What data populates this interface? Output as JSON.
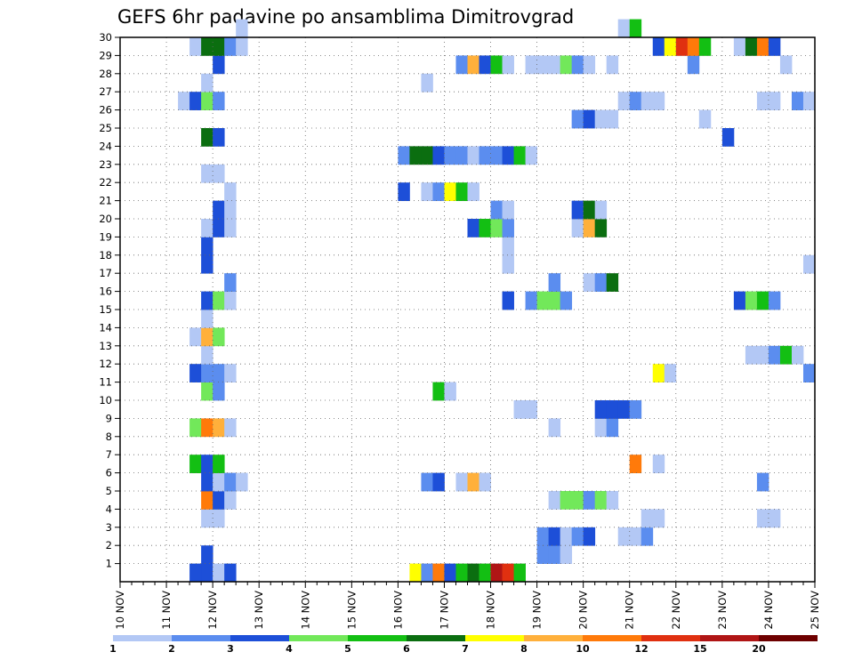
{
  "chart_data": {
    "type": "heatmap",
    "title": "GEFS 6hr padavine po ansamblima Dimitrovgrad",
    "xlabel": "",
    "ylabel": "",
    "x_tick_labels": [
      "10 NOV",
      "11 NOV",
      "12 NOV",
      "13 NOV",
      "14 NOV",
      "15 NOV",
      "16 NOV",
      "17 NOV",
      "18 NOV",
      "19 NOV",
      "20 NOV",
      "21 NOV",
      "22 NOV",
      "23 NOV",
      "24 NOV",
      "25 NOV"
    ],
    "y_tick_labels": [
      "1",
      "2",
      "3",
      "4",
      "5",
      "6",
      "7",
      "8",
      "9",
      "10",
      "11",
      "12",
      "13",
      "14",
      "15",
      "16",
      "17",
      "18",
      "19",
      "20",
      "21",
      "22",
      "23",
      "24",
      "25",
      "26",
      "27",
      "28",
      "29",
      "30"
    ],
    "x_range": [
      0,
      60
    ],
    "y_range": [
      0,
      30
    ],
    "grid": true,
    "cell_unit": "6-hour step index (0 = 10 NOV 00z); member index 1-30; category 1-12 = legend bin",
    "legend": {
      "placement": "bottom",
      "labels": [
        "1",
        "2",
        "3",
        "4",
        "5",
        "6",
        "7",
        "8",
        "10",
        "12",
        "15",
        "20"
      ],
      "colors": [
        "#b3c8f5",
        "#5b8def",
        "#1d4fd8",
        "#72e85a",
        "#13bf13",
        "#0b6e10",
        "#ffff00",
        "#ffb03b",
        "#ff7a0a",
        "#e03010",
        "#b01515",
        "#6e0000"
      ]
    },
    "cells": [
      [
        6,
        0,
        3
      ],
      [
        7,
        0,
        3
      ],
      [
        8,
        0,
        1
      ],
      [
        9,
        0,
        3
      ],
      [
        25,
        0,
        7
      ],
      [
        26,
        0,
        2
      ],
      [
        27,
        0,
        9
      ],
      [
        28,
        0,
        3
      ],
      [
        29,
        0,
        5
      ],
      [
        30,
        0,
        6
      ],
      [
        31,
        0,
        5
      ],
      [
        32,
        0,
        11
      ],
      [
        33,
        0,
        10
      ],
      [
        34,
        0,
        5
      ],
      [
        36,
        1,
        2
      ],
      [
        37,
        1,
        2
      ],
      [
        38,
        1,
        1
      ],
      [
        7,
        1,
        3
      ],
      [
        36,
        2,
        2
      ],
      [
        37,
        2,
        3
      ],
      [
        38,
        2,
        1
      ],
      [
        39,
        2,
        2
      ],
      [
        40,
        2,
        3
      ],
      [
        43,
        2,
        1
      ],
      [
        44,
        2,
        1
      ],
      [
        45,
        2,
        2
      ],
      [
        7,
        3,
        1
      ],
      [
        8,
        3,
        1
      ],
      [
        45,
        3,
        1
      ],
      [
        46,
        3,
        1
      ],
      [
        55,
        3,
        1
      ],
      [
        56,
        3,
        1
      ],
      [
        7,
        4,
        9
      ],
      [
        8,
        4,
        3
      ],
      [
        9,
        4,
        1
      ],
      [
        37,
        4,
        1
      ],
      [
        38,
        4,
        4
      ],
      [
        39,
        4,
        4
      ],
      [
        40,
        4,
        2
      ],
      [
        41,
        4,
        4
      ],
      [
        42,
        4,
        1
      ],
      [
        7,
        5,
        3
      ],
      [
        8,
        5,
        1
      ],
      [
        9,
        5,
        2
      ],
      [
        10,
        5,
        1
      ],
      [
        26,
        5,
        2
      ],
      [
        27,
        5,
        3
      ],
      [
        29,
        5,
        1
      ],
      [
        30,
        5,
        8
      ],
      [
        31,
        5,
        1
      ],
      [
        55,
        5,
        2
      ],
      [
        6,
        6,
        5
      ],
      [
        7,
        6,
        3
      ],
      [
        8,
        6,
        5
      ],
      [
        44,
        6,
        9
      ],
      [
        46,
        6,
        1
      ],
      [
        6,
        8,
        4
      ],
      [
        7,
        8,
        9
      ],
      [
        8,
        8,
        8
      ],
      [
        9,
        8,
        1
      ],
      [
        37,
        8,
        1
      ],
      [
        41,
        8,
        1
      ],
      [
        42,
        8,
        2
      ],
      [
        34,
        9,
        1
      ],
      [
        35,
        9,
        1
      ],
      [
        41,
        9,
        3
      ],
      [
        42,
        9,
        3
      ],
      [
        43,
        9,
        3
      ],
      [
        44,
        9,
        2
      ],
      [
        7,
        10,
        4
      ],
      [
        8,
        10,
        2
      ],
      [
        27,
        10,
        5
      ],
      [
        28,
        10,
        1
      ],
      [
        6,
        11,
        3
      ],
      [
        7,
        11,
        2
      ],
      [
        8,
        11,
        2
      ],
      [
        9,
        11,
        1
      ],
      [
        46,
        11,
        7
      ],
      [
        47,
        11,
        1
      ],
      [
        59,
        11,
        2
      ],
      [
        7,
        12,
        1
      ],
      [
        54,
        12,
        1
      ],
      [
        55,
        12,
        1
      ],
      [
        56,
        12,
        2
      ],
      [
        57,
        12,
        5
      ],
      [
        58,
        12,
        1
      ],
      [
        6,
        13,
        1
      ],
      [
        7,
        13,
        8
      ],
      [
        8,
        13,
        4
      ],
      [
        7,
        14,
        1
      ],
      [
        7,
        15,
        3
      ],
      [
        8,
        15,
        4
      ],
      [
        9,
        15,
        1
      ],
      [
        33,
        15,
        3
      ],
      [
        35,
        15,
        2
      ],
      [
        36,
        15,
        4
      ],
      [
        37,
        15,
        4
      ],
      [
        38,
        15,
        2
      ],
      [
        53,
        15,
        3
      ],
      [
        54,
        15,
        4
      ],
      [
        55,
        15,
        5
      ],
      [
        56,
        15,
        2
      ],
      [
        9,
        16,
        2
      ],
      [
        37,
        16,
        2
      ],
      [
        40,
        16,
        1
      ],
      [
        41,
        16,
        2
      ],
      [
        42,
        16,
        6
      ],
      [
        7,
        17,
        3
      ],
      [
        33,
        17,
        1
      ],
      [
        59,
        17,
        1
      ],
      [
        7,
        18,
        3
      ],
      [
        33,
        18,
        1
      ],
      [
        7,
        19,
        1
      ],
      [
        8,
        19,
        3
      ],
      [
        9,
        19,
        1
      ],
      [
        30,
        19,
        3
      ],
      [
        31,
        19,
        5
      ],
      [
        32,
        19,
        4
      ],
      [
        33,
        19,
        2
      ],
      [
        39,
        19,
        1
      ],
      [
        40,
        19,
        8
      ],
      [
        41,
        19,
        6
      ],
      [
        8,
        20,
        3
      ],
      [
        9,
        20,
        1
      ],
      [
        32,
        20,
        2
      ],
      [
        33,
        20,
        1
      ],
      [
        39,
        20,
        3
      ],
      [
        40,
        20,
        6
      ],
      [
        41,
        20,
        1
      ],
      [
        24,
        21,
        3
      ],
      [
        26,
        21,
        1
      ],
      [
        27,
        21,
        2
      ],
      [
        28,
        21,
        7
      ],
      [
        29,
        21,
        5
      ],
      [
        30,
        21,
        1
      ],
      [
        9,
        21,
        1
      ],
      [
        7,
        22,
        1
      ],
      [
        8,
        22,
        1
      ],
      [
        24,
        23,
        2
      ],
      [
        25,
        23,
        6
      ],
      [
        26,
        23,
        6
      ],
      [
        27,
        23,
        3
      ],
      [
        28,
        23,
        2
      ],
      [
        29,
        23,
        2
      ],
      [
        30,
        23,
        1
      ],
      [
        31,
        23,
        2
      ],
      [
        32,
        23,
        2
      ],
      [
        33,
        23,
        3
      ],
      [
        34,
        23,
        5
      ],
      [
        35,
        23,
        1
      ],
      [
        7,
        24,
        6
      ],
      [
        8,
        24,
        3
      ],
      [
        52,
        24,
        3
      ],
      [
        39,
        25,
        2
      ],
      [
        40,
        25,
        3
      ],
      [
        41,
        25,
        1
      ],
      [
        42,
        25,
        1
      ],
      [
        50,
        25,
        1
      ],
      [
        5,
        26,
        1
      ],
      [
        6,
        26,
        3
      ],
      [
        7,
        26,
        4
      ],
      [
        8,
        26,
        2
      ],
      [
        43,
        26,
        1
      ],
      [
        44,
        26,
        2
      ],
      [
        45,
        26,
        1
      ],
      [
        46,
        26,
        1
      ],
      [
        55,
        26,
        1
      ],
      [
        56,
        26,
        1
      ],
      [
        58,
        26,
        2
      ],
      [
        59,
        26,
        1
      ],
      [
        7,
        27,
        1
      ],
      [
        26,
        27,
        1
      ],
      [
        8,
        28,
        3
      ],
      [
        29,
        28,
        2
      ],
      [
        30,
        28,
        8
      ],
      [
        31,
        28,
        3
      ],
      [
        32,
        28,
        5
      ],
      [
        33,
        28,
        1
      ],
      [
        35,
        28,
        1
      ],
      [
        36,
        28,
        1
      ],
      [
        37,
        28,
        1
      ],
      [
        38,
        28,
        4
      ],
      [
        39,
        28,
        2
      ],
      [
        40,
        28,
        1
      ],
      [
        42,
        28,
        1
      ],
      [
        49,
        28,
        2
      ],
      [
        57,
        28,
        1
      ],
      [
        6,
        29,
        1
      ],
      [
        7,
        29,
        6
      ],
      [
        8,
        29,
        6
      ],
      [
        9,
        29,
        2
      ],
      [
        10,
        29,
        1
      ],
      [
        46,
        29,
        3
      ],
      [
        47,
        29,
        7
      ],
      [
        48,
        29,
        10
      ],
      [
        49,
        29,
        9
      ],
      [
        50,
        29,
        5
      ],
      [
        53,
        29,
        1
      ],
      [
        54,
        29,
        6
      ],
      [
        55,
        29,
        9
      ],
      [
        56,
        29,
        3
      ],
      [
        10,
        30,
        1
      ],
      [
        43,
        30,
        1
      ],
      [
        44,
        30,
        5
      ]
    ]
  }
}
